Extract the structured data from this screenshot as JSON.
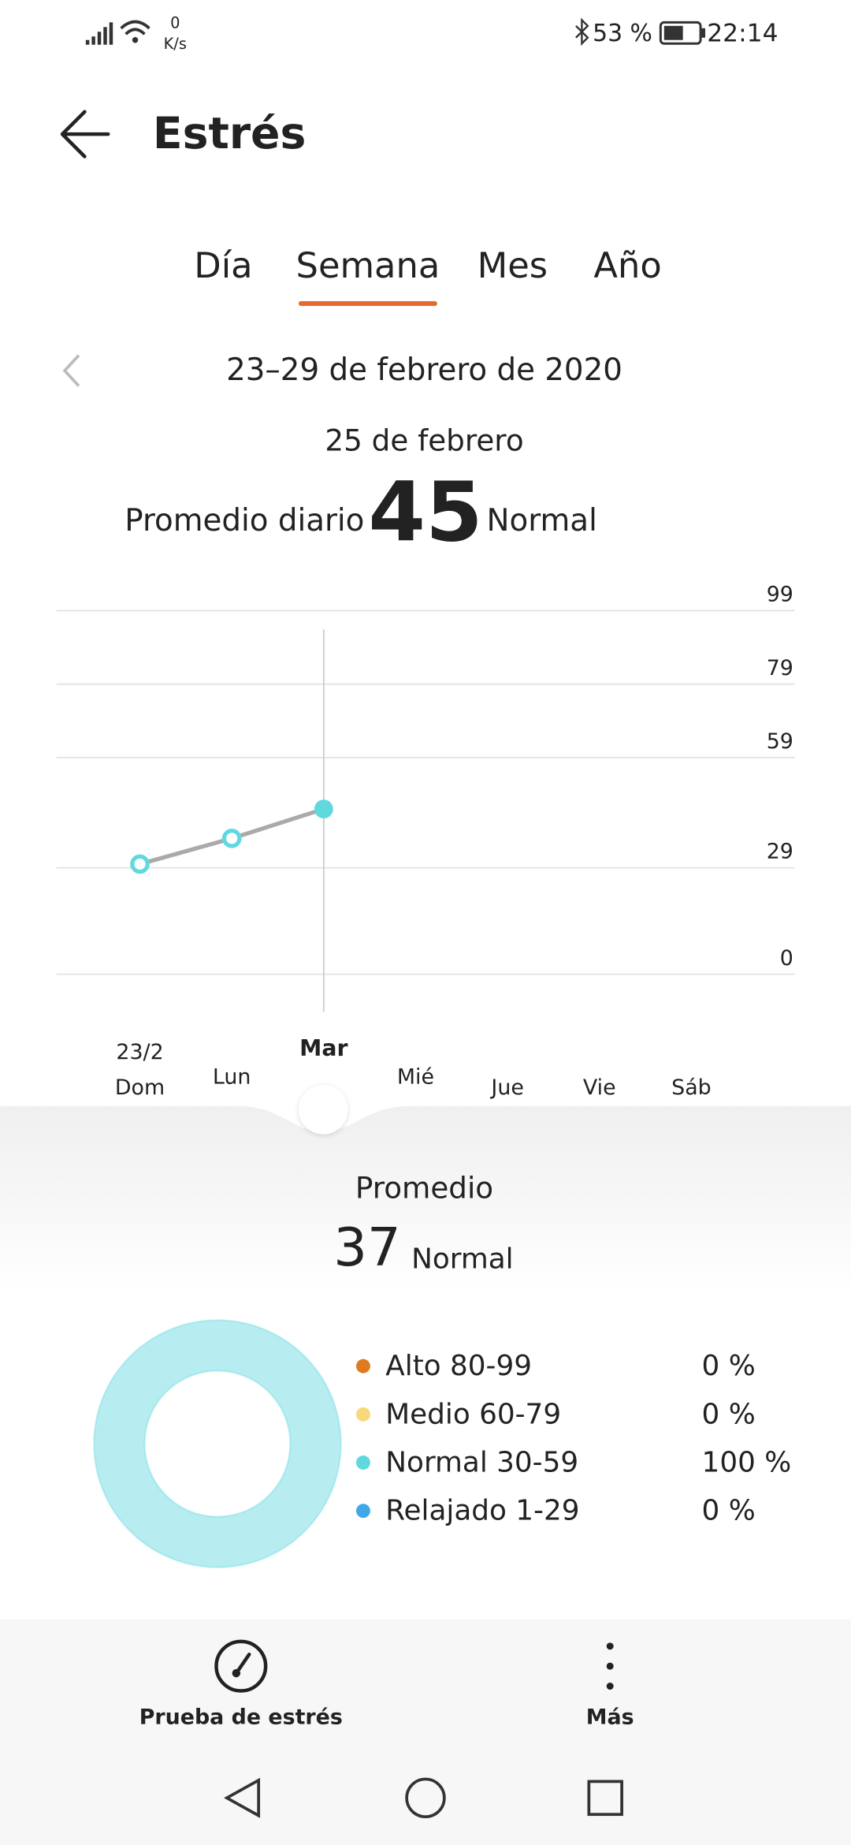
{
  "status_bar": {
    "network_speed": "0",
    "network_unit": "K/s",
    "battery": "53 %",
    "time": "22:14"
  },
  "header": {
    "title": "Estrés"
  },
  "tabs": [
    {
      "label": "Día",
      "active": false
    },
    {
      "label": "Semana",
      "active": true
    },
    {
      "label": "Mes",
      "active": false
    },
    {
      "label": "Año",
      "active": false
    }
  ],
  "period": "23–29 de febrero de 2020",
  "selected_day": {
    "date": "25 de febrero",
    "label": "Promedio diario",
    "value": 45,
    "level": "Normal"
  },
  "chart_data": [
    {
      "type": "line",
      "week_start_label": "23/2",
      "categories": [
        "Dom",
        "Lun",
        "Mar",
        "Mié",
        "Jue",
        "Vie",
        "Sáb"
      ],
      "values": [
        30,
        37,
        45,
        null,
        null,
        null,
        null
      ],
      "selected_index": 2,
      "color": "#5fd8e0",
      "line_color": "#aaaaaa",
      "ylim": [
        0,
        99
      ],
      "yticks": [
        0,
        29,
        59,
        79,
        99
      ],
      "grid": true
    },
    {
      "type": "pie",
      "donut": true,
      "categories": [
        "Alto 80-99",
        "Medio 60-79",
        "Normal 30-59",
        "Relajado 1-29"
      ],
      "values": [
        0,
        0,
        100,
        0
      ],
      "value_labels": [
        "0 %",
        "0 %",
        "100 %",
        "0 %"
      ],
      "colors": [
        "#e07a1f",
        "#f7d97c",
        "#5fd8e0",
        "#3fa9e8"
      ]
    }
  ],
  "summary": {
    "label": "Promedio",
    "value": 37,
    "level": "Normal"
  },
  "actions": [
    "Prueba de estrés",
    "Más"
  ]
}
